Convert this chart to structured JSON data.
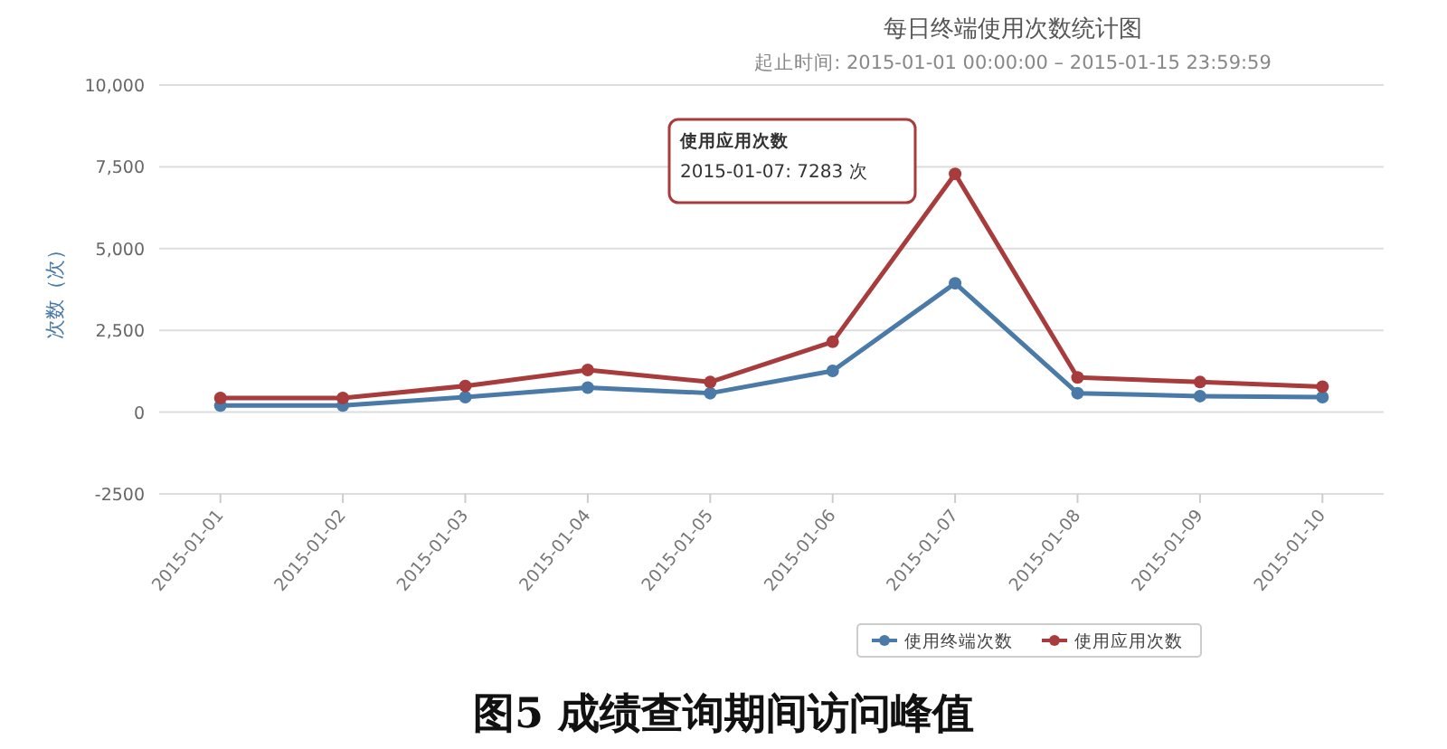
{
  "chart_data": {
    "type": "line",
    "title": "每日终端使用次数统计图",
    "subtitle": "起止时间: 2015-01-01 00:00:00 – 2015-01-15 23:59:59",
    "ylabel": "次数（次）",
    "categories": [
      "2015-01-01",
      "2015-01-02",
      "2015-01-03",
      "2015-01-04",
      "2015-01-05",
      "2015-01-06",
      "2015-01-07",
      "2015-01-08",
      "2015-01-09",
      "2015-01-10"
    ],
    "series": [
      {
        "name": "使用终端次数",
        "color": "#4a7aa8",
        "values": [
          200,
          200,
          460,
          750,
          580,
          1260,
          3940,
          580,
          490,
          460
        ]
      },
      {
        "name": "使用应用次数",
        "color": "#a83c3c",
        "values": [
          430,
          430,
          800,
          1290,
          920,
          2150,
          7283,
          1060,
          920,
          780
        ]
      }
    ],
    "ylim": [
      -2500,
      10000
    ],
    "yticks": [
      {
        "value": -2500,
        "label": "-2500"
      },
      {
        "value": 0,
        "label": "0"
      },
      {
        "value": 2500,
        "label": "2,500"
      },
      {
        "value": 5000,
        "label": "5,000"
      },
      {
        "value": 7500,
        "label": "7,500"
      },
      {
        "value": 10000,
        "label": "10,000"
      }
    ],
    "grid": "y",
    "legend": "bottom",
    "marker": "circle",
    "line_style": "solid",
    "annotations": [
      "使用应用次数",
      "2015-01-07: 7283 次",
      "图5  成绩查询期间访问峰值"
    ]
  }
}
